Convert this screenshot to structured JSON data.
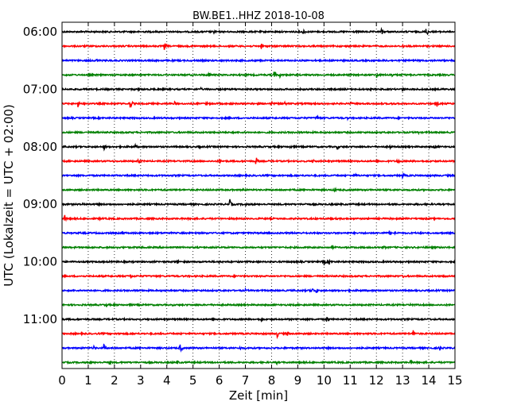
{
  "chart_data": {
    "type": "line",
    "title": "BW.BE1..HHZ 2018-10-08",
    "xlabel": "Zeit  [min]",
    "ylabel": "UTC (Lokalzeit = UTC + 02:00)",
    "xlim": [
      0,
      15
    ],
    "x_ticks": [
      "0",
      "1",
      "2",
      "3",
      "4",
      "5",
      "6",
      "7",
      "8",
      "9",
      "10",
      "11",
      "12",
      "13",
      "14",
      "15"
    ],
    "y_tick_labels": [
      "06:00",
      "07:00",
      "08:00",
      "09:00",
      "10:00",
      "11:00"
    ],
    "trace_interval_min": 15,
    "start_time": "06:00",
    "grid": true,
    "colors": [
      "#000000",
      "#ff0000",
      "#0000ff",
      "#008000"
    ],
    "series": [
      {
        "time": "06:00",
        "color": "#000000",
        "events": [
          {
            "t": 5.8,
            "a": 3
          },
          {
            "t": 9.2,
            "a": 5
          },
          {
            "t": 12.2,
            "a": 5
          },
          {
            "t": 13.9,
            "a": 7
          }
        ]
      },
      {
        "time": "06:15",
        "color": "#ff0000",
        "events": [
          {
            "t": 3.9,
            "a": 6
          },
          {
            "t": 7.6,
            "a": 4
          },
          {
            "t": 13.0,
            "a": 3
          }
        ]
      },
      {
        "time": "06:30",
        "color": "#0000ff",
        "events": [
          {
            "t": 1.3,
            "a": 3
          },
          {
            "t": 12.4,
            "a": 2
          }
        ]
      },
      {
        "time": "06:45",
        "color": "#008000",
        "events": [
          {
            "t": 5.6,
            "a": 4
          },
          {
            "t": 7.0,
            "a": 3
          },
          {
            "t": 8.1,
            "a": 6
          },
          {
            "t": 8.3,
            "a": 4
          },
          {
            "t": 12.0,
            "a": 5
          },
          {
            "t": 12.6,
            "a": 3
          }
        ]
      },
      {
        "time": "07:00",
        "color": "#000000",
        "events": [
          {
            "t": 2.9,
            "a": 3
          },
          {
            "t": 5.3,
            "a": 2
          },
          {
            "t": 13.0,
            "a": 4
          }
        ]
      },
      {
        "time": "07:15",
        "color": "#ff0000",
        "events": [
          {
            "t": 0.6,
            "a": 5
          },
          {
            "t": 2.6,
            "a": 7
          },
          {
            "t": 4.3,
            "a": 3
          },
          {
            "t": 5.5,
            "a": 3
          },
          {
            "t": 8.0,
            "a": 3
          },
          {
            "t": 8.5,
            "a": 3
          },
          {
            "t": 11.0,
            "a": 3
          },
          {
            "t": 12.6,
            "a": 3
          },
          {
            "t": 14.3,
            "a": 5
          }
        ]
      },
      {
        "time": "07:30",
        "color": "#0000ff",
        "events": [
          {
            "t": 9.7,
            "a": 6
          },
          {
            "t": 10.9,
            "a": 2
          },
          {
            "t": 14.7,
            "a": 2
          }
        ]
      },
      {
        "time": "07:45",
        "color": "#008000",
        "events": [
          {
            "t": 6.5,
            "a": 2
          },
          {
            "t": 13.6,
            "a": 2
          }
        ]
      },
      {
        "time": "08:00",
        "color": "#000000",
        "events": [
          {
            "t": 1.6,
            "a": 4
          },
          {
            "t": 2.8,
            "a": 4
          },
          {
            "t": 5.2,
            "a": 4
          },
          {
            "t": 8.7,
            "a": 3
          },
          {
            "t": 10.5,
            "a": 4
          },
          {
            "t": 12.5,
            "a": 3
          },
          {
            "t": 14.2,
            "a": 3
          }
        ]
      },
      {
        "time": "08:15",
        "color": "#ff0000",
        "events": [
          {
            "t": 2.9,
            "a": 4
          },
          {
            "t": 6.0,
            "a": 3
          },
          {
            "t": 7.4,
            "a": 6
          },
          {
            "t": 9.6,
            "a": 3
          },
          {
            "t": 12.8,
            "a": 4
          }
        ]
      },
      {
        "time": "08:30",
        "color": "#0000ff",
        "events": [
          {
            "t": 11.2,
            "a": 3
          },
          {
            "t": 13.0,
            "a": 4
          }
        ]
      },
      {
        "time": "08:45",
        "color": "#008000",
        "events": [
          {
            "t": 1.1,
            "a": 2
          },
          {
            "t": 6.9,
            "a": 3
          },
          {
            "t": 10.4,
            "a": 3
          }
        ]
      },
      {
        "time": "09:00",
        "color": "#000000",
        "events": [
          {
            "t": 0.8,
            "a": 3
          },
          {
            "t": 1.3,
            "a": 4
          },
          {
            "t": 6.4,
            "a": 7
          },
          {
            "t": 7.0,
            "a": 3
          },
          {
            "t": 9.3,
            "a": 2
          }
        ]
      },
      {
        "time": "09:15",
        "color": "#ff0000",
        "events": [
          {
            "t": 0.1,
            "a": 5
          },
          {
            "t": 1.4,
            "a": 3
          }
        ]
      },
      {
        "time": "09:30",
        "color": "#0000ff",
        "events": [
          {
            "t": 2.3,
            "a": 3
          },
          {
            "t": 12.5,
            "a": 4
          },
          {
            "t": 12.7,
            "a": 3
          }
        ]
      },
      {
        "time": "09:45",
        "color": "#008000",
        "events": [
          {
            "t": 2.1,
            "a": 2
          },
          {
            "t": 10.3,
            "a": 3
          },
          {
            "t": 12.3,
            "a": 2
          }
        ]
      },
      {
        "time": "10:00",
        "color": "#000000",
        "events": [
          {
            "t": 4.4,
            "a": 3
          },
          {
            "t": 6.0,
            "a": 2
          },
          {
            "t": 10.0,
            "a": 5
          },
          {
            "t": 10.2,
            "a": 4
          }
        ]
      },
      {
        "time": "10:15",
        "color": "#ff0000",
        "events": [
          {
            "t": 2.6,
            "a": 4
          },
          {
            "t": 13.0,
            "a": 3
          },
          {
            "t": 14.6,
            "a": 3
          }
        ]
      },
      {
        "time": "10:30",
        "color": "#0000ff",
        "events": [
          {
            "t": 7.0,
            "a": 2
          },
          {
            "t": 9.5,
            "a": 7
          },
          {
            "t": 9.7,
            "a": 4
          }
        ]
      },
      {
        "time": "10:45",
        "color": "#008000",
        "events": [
          {
            "t": 1.7,
            "a": 3
          },
          {
            "t": 13.3,
            "a": 4
          }
        ]
      },
      {
        "time": "11:00",
        "color": "#000000",
        "events": [
          {
            "t": 7.6,
            "a": 3
          },
          {
            "t": 10.1,
            "a": 5
          },
          {
            "t": 13.7,
            "a": 2
          }
        ]
      },
      {
        "time": "11:15",
        "color": "#ff0000",
        "events": [
          {
            "t": 2.2,
            "a": 2
          },
          {
            "t": 8.2,
            "a": 6
          },
          {
            "t": 8.6,
            "a": 4
          },
          {
            "t": 13.4,
            "a": 7
          }
        ]
      },
      {
        "time": "11:30",
        "color": "#0000ff",
        "events": [
          {
            "t": 1.2,
            "a": 4
          },
          {
            "t": 1.6,
            "a": 6
          },
          {
            "t": 4.5,
            "a": 7
          },
          {
            "t": 6.8,
            "a": 3
          },
          {
            "t": 14.4,
            "a": 5
          }
        ]
      },
      {
        "time": "11:45",
        "color": "#008000",
        "events": [
          {
            "t": 1.1,
            "a": 3
          },
          {
            "t": 1.8,
            "a": 4
          },
          {
            "t": 4.4,
            "a": 3
          },
          {
            "t": 8.2,
            "a": 3
          },
          {
            "t": 13.3,
            "a": 4
          }
        ]
      }
    ]
  }
}
